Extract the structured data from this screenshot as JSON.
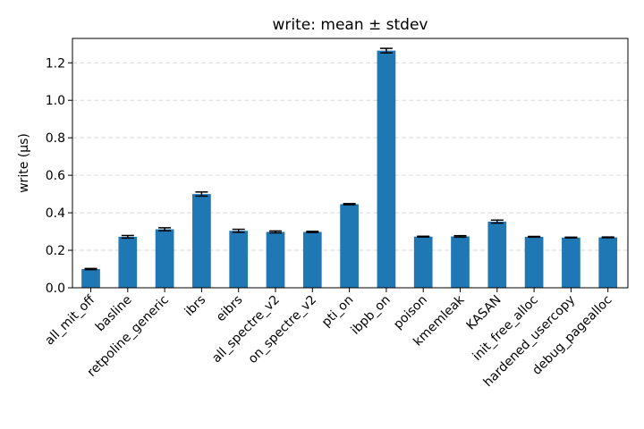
{
  "chart_data": {
    "type": "bar",
    "title": "write: mean ± stdev",
    "xlabel": "",
    "ylabel": "write (µs)",
    "ylim": [
      0,
      1.33
    ],
    "yticks": [
      0.0,
      0.2,
      0.4,
      0.6,
      0.8,
      1.0,
      1.2
    ],
    "ytick_labels": [
      "0.0",
      "0.2",
      "0.4",
      "0.6",
      "0.8",
      "1.0",
      "1.2"
    ],
    "grid": "y-dashed",
    "bar_color": "#1f77b4",
    "categories": [
      "all_mit_off",
      "basline",
      "retpoline_generic",
      "ibrs",
      "eibrs",
      "all_spectre_v2",
      "on_spectre_v2",
      "pti_on",
      "ibpb_on",
      "poison",
      "kmemleak",
      "KASAN",
      "init_free_alloc",
      "hardened_usercopy",
      "debug_pagealloc"
    ],
    "values": [
      0.1,
      0.272,
      0.312,
      0.5,
      0.304,
      0.298,
      0.298,
      0.446,
      1.265,
      0.273,
      0.274,
      0.353,
      0.272,
      0.268,
      0.269
    ],
    "errors": [
      0.003,
      0.007,
      0.008,
      0.011,
      0.008,
      0.005,
      0.003,
      0.003,
      0.012,
      0.002,
      0.004,
      0.008,
      0.002,
      0.002,
      0.002
    ]
  }
}
